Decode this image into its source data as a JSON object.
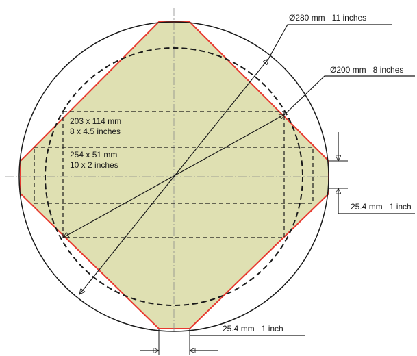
{
  "diagram": {
    "colors": {
      "fill": "#dfe0b2",
      "outline_red": "#e8392f",
      "line": "#1a1a1a",
      "centerline": "#8a8a8a"
    },
    "labels": {
      "outer_diameter": "Ø280 mm   11 inches",
      "inner_diameter": "Ø200 mm   8 inches",
      "rect_large_line1": "203 x 114 mm",
      "rect_large_line2": "8 x 4.5 inches",
      "rect_small_line1": "254 x 51 mm",
      "rect_small_line2": "10 x 2 inches",
      "right_offset": "25.4 mm   1 inch",
      "bottom_offset": "25.4 mm   1 inch"
    }
  }
}
